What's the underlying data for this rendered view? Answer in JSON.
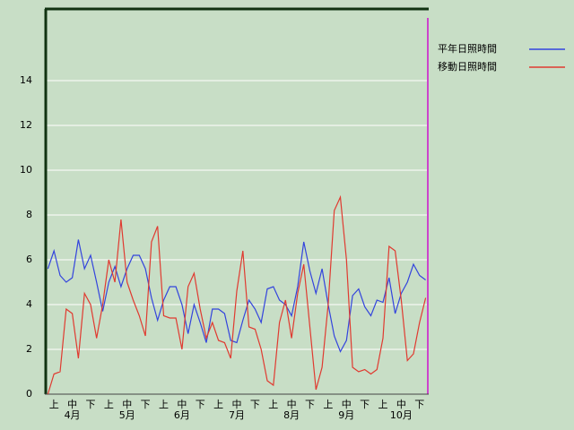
{
  "chart_data": {
    "type": "line",
    "categories": [
      null,
      "上",
      null,
      null,
      "中",
      null,
      null,
      "下",
      null,
      null,
      "上",
      null,
      null,
      "中",
      null,
      null,
      "下",
      null,
      null,
      "上",
      null,
      null,
      "中",
      null,
      null,
      "下",
      null,
      null,
      "上",
      null,
      null,
      "中",
      null,
      null,
      "下",
      null,
      null,
      "上",
      null,
      null,
      "中",
      null,
      null,
      "下",
      null,
      null,
      "上",
      null,
      null,
      "中",
      null,
      null,
      "下",
      null,
      null,
      "上",
      null,
      null,
      "中",
      null,
      null,
      "下",
      null
    ],
    "months": [
      "4月",
      "5月",
      "6月",
      "7月",
      "8月",
      "9月",
      "10月"
    ],
    "series": [
      {
        "name": "平年日照時間",
        "color": "#3344dd",
        "values": [
          5.6,
          6.4,
          5.3,
          5.0,
          5.2,
          6.9,
          5.6,
          6.2,
          5.0,
          3.7,
          5.0,
          5.7,
          4.8,
          5.6,
          6.2,
          6.2,
          5.6,
          4.3,
          3.3,
          4.2,
          4.8,
          4.8,
          4.0,
          2.7,
          4.0,
          3.2,
          2.3,
          3.8,
          3.8,
          3.6,
          2.4,
          2.3,
          3.3,
          4.2,
          3.8,
          3.2,
          4.7,
          4.8,
          4.2,
          4.0,
          3.5,
          4.8,
          6.8,
          5.5,
          4.5,
          5.6,
          4.0,
          2.6,
          1.9,
          2.4,
          4.4,
          4.7,
          3.9,
          3.5,
          4.2,
          4.1,
          5.2,
          3.6,
          4.5,
          5.0,
          5.8,
          5.3,
          5.1
        ]
      },
      {
        "name": "移動日照時間",
        "color": "#e03a30",
        "values": [
          0,
          0.9,
          1.0,
          3.8,
          3.6,
          1.6,
          4.5,
          4.0,
          2.5,
          4.0,
          6.0,
          5.0,
          7.8,
          5.0,
          4.2,
          3.5,
          2.6,
          6.8,
          7.5,
          3.5,
          3.4,
          3.4,
          2.0,
          4.8,
          5.4,
          3.8,
          2.5,
          3.2,
          2.4,
          2.3,
          1.6,
          4.6,
          6.4,
          3.0,
          2.9,
          2.0,
          0.6,
          0.4,
          3.2,
          4.2,
          2.5,
          4.5,
          5.8,
          3.0,
          0.2,
          1.2,
          4.0,
          8.2,
          8.8,
          6.0,
          1.2,
          1.0,
          1.1,
          0.9,
          1.1,
          2.5,
          6.6,
          6.4,
          4.2,
          1.5,
          1.8,
          3.2,
          4.3
        ]
      }
    ],
    "ylim": [
      0,
      17.2
    ],
    "yticks": [
      0,
      2,
      4,
      6,
      8,
      10,
      12,
      14
    ],
    "grid": true
  }
}
